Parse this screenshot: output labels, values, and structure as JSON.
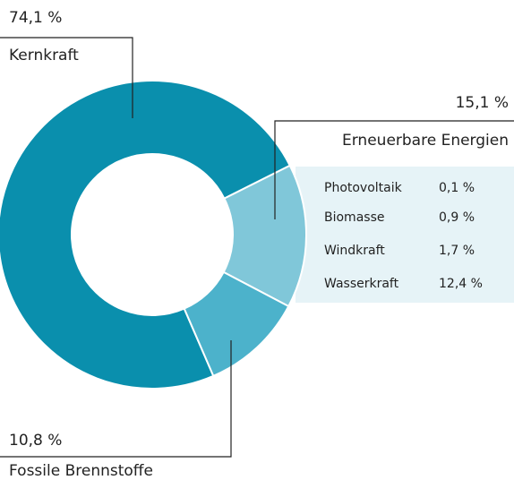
{
  "chart_data": {
    "type": "donut",
    "categories": [
      "Kernkraft",
      "Erneuerbare Energien",
      "Fossile Brennstoffe"
    ],
    "values": [
      74.1,
      15.1,
      10.8
    ],
    "value_labels": [
      "74,1 %",
      "15,1 %",
      "10,8 %"
    ],
    "colors": [
      "#0a8fad",
      "#80c7d9",
      "#4cb2cb"
    ],
    "breakdown": {
      "categories": [
        "Photovoltaik",
        "Biomasse",
        "Windkraft",
        "Wasserkraft"
      ],
      "values": [
        0.1,
        0.9,
        1.7,
        12.4
      ],
      "value_labels": [
        "0,1 %",
        "0,9 %",
        "1,7 %",
        "12,4 %"
      ]
    }
  }
}
